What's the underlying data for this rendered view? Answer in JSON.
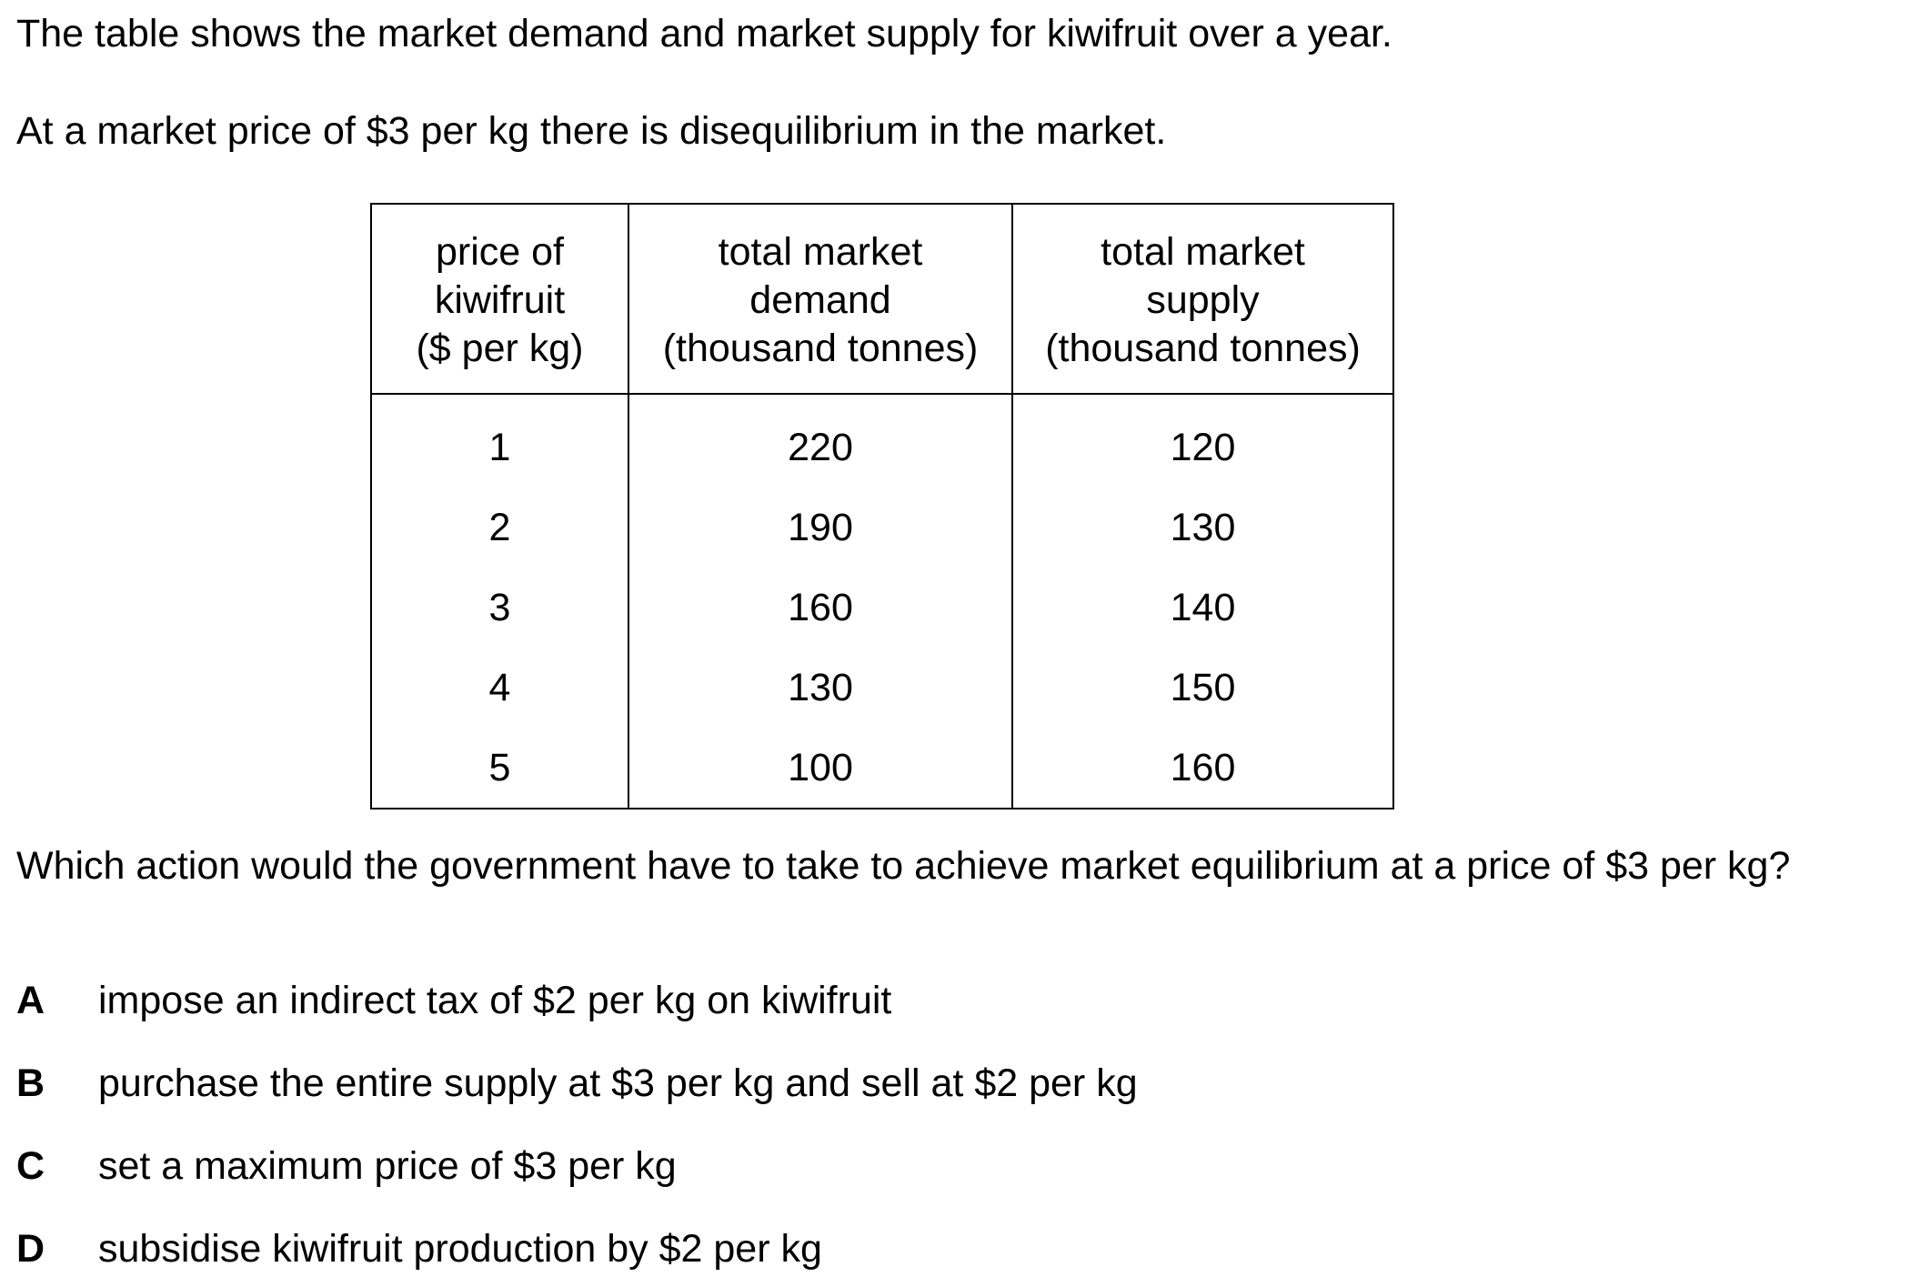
{
  "intro": {
    "line1": "The table shows the market demand and market supply for kiwifruit over a year.",
    "line2": "At a market price of $3 per kg there is disequilibrium in the market."
  },
  "table": {
    "headers": [
      [
        "price of",
        "kiwifruit",
        "($ per kg)"
      ],
      [
        "total market",
        "demand",
        "(thousand tonnes)"
      ],
      [
        "total market",
        "supply",
        "(thousand tonnes)"
      ]
    ],
    "rows": [
      [
        "1",
        "220",
        "120"
      ],
      [
        "2",
        "190",
        "130"
      ],
      [
        "3",
        "160",
        "140"
      ],
      [
        "4",
        "130",
        "150"
      ],
      [
        "5",
        "100",
        "160"
      ]
    ]
  },
  "question": "Which action would the government have to take to achieve market equilibrium at a price of $3 per kg?",
  "options": [
    {
      "letter": "A",
      "text": "impose an indirect tax of $2 per kg on kiwifruit"
    },
    {
      "letter": "B",
      "text": "purchase the entire supply at $3 per kg and sell at $2 per kg"
    },
    {
      "letter": "C",
      "text": "set a maximum price of $3 per kg"
    },
    {
      "letter": "D",
      "text": "subsidise kiwifruit production by $2 per kg"
    }
  ]
}
